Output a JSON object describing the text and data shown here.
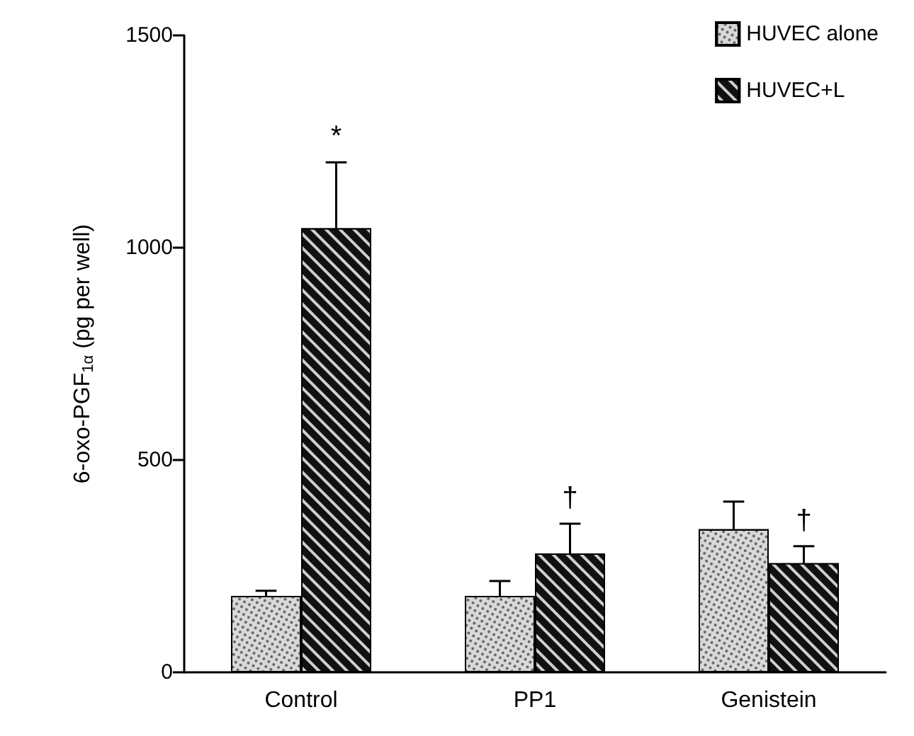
{
  "chart_data": {
    "type": "bar",
    "ylabel": "6-oxo-PGF$_{1α}$ (pg per well)",
    "categories": [
      "Control",
      "PP1",
      "Genistein"
    ],
    "series": [
      {
        "name": "HUVEC alone",
        "color": "#d9d9d9",
        "values": [
          180,
          180,
          337
        ],
        "errors": [
          12,
          35,
          65
        ]
      },
      {
        "name": "HUVEC+L",
        "color": "#111111",
        "values": [
          1046,
          280,
          257
        ],
        "errors": [
          155,
          70,
          40
        ]
      }
    ],
    "ylim": [
      0,
      1500
    ],
    "yticks": [
      0,
      500,
      1000,
      1500
    ],
    "grid": false,
    "legend": "top right",
    "annotations": [
      "*",
      "†",
      "†"
    ]
  }
}
